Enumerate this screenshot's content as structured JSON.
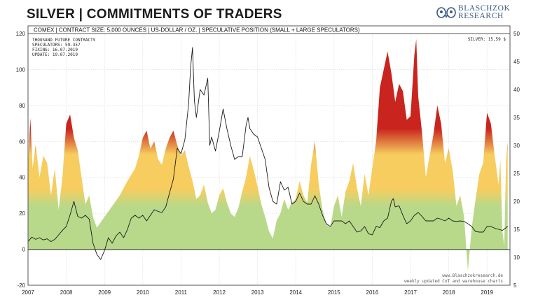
{
  "header": {
    "title": "SILVER | COMMITMENTS OF TRADERS",
    "logo_line1": "BLASCHZOK",
    "logo_line2": "RESEARCH"
  },
  "chart_data": {
    "type": "area",
    "subtitle": "COMEX | CONTRACT SIZE: 5,000 OUNCES | US-DOLLAR / OZ. | SPECULATIVE POSITION (SMALL + LARGE SPECULATORS)",
    "info_lines": [
      "THOUSAND FUTURE CONTRACTS",
      "SPECULATORS: 59.357",
      "FIXING: 16.07.2019",
      "UPDATE: 19.07.2019"
    ],
    "price_label": "SILVER: 15,59 $",
    "watermark_lines": [
      "www.Blaschzokresearch.de",
      "weekly updated CoT and warehouse charts"
    ],
    "x_ticks": [
      "2007",
      "2008",
      "2009",
      "2010",
      "2011",
      "2012",
      "2013",
      "2014",
      "2015",
      "2016",
      "2017",
      "2018",
      "2019"
    ],
    "left_axis": {
      "ylim": [
        -20,
        120
      ],
      "ticks": [
        "-20",
        "0",
        "20",
        "40",
        "60",
        "80",
        "100",
        "120"
      ]
    },
    "right_axis": {
      "ylim": [
        5,
        50
      ],
      "ticks": [
        "5",
        "10",
        "15",
        "20",
        "25",
        "30",
        "35",
        "40",
        "45",
        "50"
      ]
    },
    "colors": {
      "low": "#b8d98a",
      "mid": "#f6cd5e",
      "high": "#c9241e",
      "price_line": "#1a1a1a"
    },
    "grid": true,
    "series": [
      {
        "name": "Speculative position",
        "axis": "left",
        "points": [
          [
            2007.0,
            47
          ],
          [
            2007.06,
            73
          ],
          [
            2007.12,
            45
          ],
          [
            2007.2,
            58
          ],
          [
            2007.3,
            40
          ],
          [
            2007.4,
            52
          ],
          [
            2007.5,
            48
          ],
          [
            2007.6,
            30
          ],
          [
            2007.7,
            45
          ],
          [
            2007.8,
            22
          ],
          [
            2007.9,
            40
          ],
          [
            2008.0,
            70
          ],
          [
            2008.1,
            75
          ],
          [
            2008.2,
            62
          ],
          [
            2008.3,
            55
          ],
          [
            2008.4,
            40
          ],
          [
            2008.5,
            25
          ],
          [
            2008.6,
            30
          ],
          [
            2008.7,
            18
          ],
          [
            2008.8,
            12
          ],
          [
            2008.9,
            15
          ],
          [
            2009.0,
            18
          ],
          [
            2009.2,
            24
          ],
          [
            2009.4,
            30
          ],
          [
            2009.6,
            38
          ],
          [
            2009.8,
            45
          ],
          [
            2009.9,
            52
          ],
          [
            2010.0,
            62
          ],
          [
            2010.1,
            66
          ],
          [
            2010.2,
            56
          ],
          [
            2010.3,
            60
          ],
          [
            2010.4,
            50
          ],
          [
            2010.5,
            47
          ],
          [
            2010.6,
            56
          ],
          [
            2010.7,
            62
          ],
          [
            2010.8,
            66
          ],
          [
            2010.9,
            58
          ],
          [
            2011.0,
            52
          ],
          [
            2011.1,
            55
          ],
          [
            2011.2,
            46
          ],
          [
            2011.3,
            38
          ],
          [
            2011.4,
            28
          ],
          [
            2011.5,
            30
          ],
          [
            2011.6,
            36
          ],
          [
            2011.7,
            26
          ],
          [
            2011.8,
            20
          ],
          [
            2011.9,
            22
          ],
          [
            2012.0,
            30
          ],
          [
            2012.1,
            34
          ],
          [
            2012.2,
            26
          ],
          [
            2012.3,
            20
          ],
          [
            2012.4,
            18
          ],
          [
            2012.5,
            23
          ],
          [
            2012.6,
            32
          ],
          [
            2012.7,
            40
          ],
          [
            2012.8,
            52
          ],
          [
            2012.9,
            44
          ],
          [
            2013.0,
            35
          ],
          [
            2013.1,
            25
          ],
          [
            2013.2,
            18
          ],
          [
            2013.3,
            10
          ],
          [
            2013.4,
            6
          ],
          [
            2013.5,
            16
          ],
          [
            2013.6,
            20
          ],
          [
            2013.7,
            28
          ],
          [
            2013.8,
            22
          ],
          [
            2013.9,
            26
          ],
          [
            2014.0,
            28
          ],
          [
            2014.1,
            38
          ],
          [
            2014.2,
            30
          ],
          [
            2014.3,
            26
          ],
          [
            2014.4,
            47
          ],
          [
            2014.5,
            60
          ],
          [
            2014.6,
            36
          ],
          [
            2014.7,
            22
          ],
          [
            2014.8,
            14
          ],
          [
            2014.9,
            12
          ],
          [
            2015.0,
            24
          ],
          [
            2015.1,
            30
          ],
          [
            2015.2,
            18
          ],
          [
            2015.3,
            32
          ],
          [
            2015.4,
            38
          ],
          [
            2015.5,
            48
          ],
          [
            2015.6,
            34
          ],
          [
            2015.7,
            24
          ],
          [
            2015.8,
            42
          ],
          [
            2015.9,
            30
          ],
          [
            2016.0,
            45
          ],
          [
            2016.1,
            60
          ],
          [
            2016.2,
            90
          ],
          [
            2016.3,
            100
          ],
          [
            2016.4,
            110
          ],
          [
            2016.5,
            98
          ],
          [
            2016.6,
            82
          ],
          [
            2016.7,
            92
          ],
          [
            2016.8,
            88
          ],
          [
            2016.9,
            72
          ],
          [
            2017.0,
            74
          ],
          [
            2017.1,
            108
          ],
          [
            2017.15,
            117
          ],
          [
            2017.2,
            85
          ],
          [
            2017.3,
            65
          ],
          [
            2017.4,
            40
          ],
          [
            2017.5,
            52
          ],
          [
            2017.6,
            64
          ],
          [
            2017.7,
            80
          ],
          [
            2017.8,
            70
          ],
          [
            2017.9,
            48
          ],
          [
            2018.0,
            56
          ],
          [
            2018.1,
            44
          ],
          [
            2018.2,
            24
          ],
          [
            2018.3,
            30
          ],
          [
            2018.4,
            18
          ],
          [
            2018.5,
            -12
          ],
          [
            2018.6,
            12
          ],
          [
            2018.7,
            28
          ],
          [
            2018.8,
            42
          ],
          [
            2018.9,
            48
          ],
          [
            2019.0,
            76
          ],
          [
            2019.1,
            70
          ],
          [
            2019.2,
            52
          ],
          [
            2019.3,
            36
          ],
          [
            2019.35,
            50
          ],
          [
            2019.4,
            10
          ],
          [
            2019.45,
            2
          ],
          [
            2019.5,
            50
          ],
          [
            2019.54,
            59.357
          ]
        ]
      },
      {
        "name": "SILVER",
        "axis": "right",
        "points": [
          [
            2007.0,
            12.8
          ],
          [
            2007.1,
            13.6
          ],
          [
            2007.2,
            13.2
          ],
          [
            2007.3,
            13.5
          ],
          [
            2007.4,
            13.1
          ],
          [
            2007.5,
            13.3
          ],
          [
            2007.6,
            12.8
          ],
          [
            2007.7,
            13.2
          ],
          [
            2007.8,
            14.0
          ],
          [
            2007.9,
            14.8
          ],
          [
            2008.0,
            15.5
          ],
          [
            2008.1,
            17.6
          ],
          [
            2008.2,
            20.0
          ],
          [
            2008.3,
            17.3
          ],
          [
            2008.4,
            17.0
          ],
          [
            2008.5,
            17.5
          ],
          [
            2008.6,
            16.8
          ],
          [
            2008.7,
            12.5
          ],
          [
            2008.8,
            10.5
          ],
          [
            2008.9,
            9.6
          ],
          [
            2009.0,
            11.2
          ],
          [
            2009.1,
            13.5
          ],
          [
            2009.2,
            12.5
          ],
          [
            2009.3,
            13.8
          ],
          [
            2009.4,
            14.5
          ],
          [
            2009.5,
            13.5
          ],
          [
            2009.6,
            15.0
          ],
          [
            2009.7,
            17.0
          ],
          [
            2009.8,
            17.5
          ],
          [
            2009.9,
            17.0
          ],
          [
            2010.0,
            17.5
          ],
          [
            2010.1,
            16.5
          ],
          [
            2010.2,
            17.5
          ],
          [
            2010.3,
            18.5
          ],
          [
            2010.4,
            18.2
          ],
          [
            2010.5,
            18.0
          ],
          [
            2010.6,
            19.0
          ],
          [
            2010.7,
            21.5
          ],
          [
            2010.8,
            24.0
          ],
          [
            2010.9,
            29.5
          ],
          [
            2011.0,
            28.5
          ],
          [
            2011.1,
            31.0
          ],
          [
            2011.2,
            37.5
          ],
          [
            2011.25,
            44.0
          ],
          [
            2011.3,
            47.5
          ],
          [
            2011.35,
            38.0
          ],
          [
            2011.4,
            35.0
          ],
          [
            2011.5,
            40.0
          ],
          [
            2011.6,
            39.0
          ],
          [
            2011.7,
            42.0
          ],
          [
            2011.75,
            30.0
          ],
          [
            2011.8,
            31.5
          ],
          [
            2011.9,
            29.0
          ],
          [
            2012.0,
            32.5
          ],
          [
            2012.1,
            36.5
          ],
          [
            2012.2,
            33.0
          ],
          [
            2012.3,
            30.0
          ],
          [
            2012.4,
            27.5
          ],
          [
            2012.5,
            28.0
          ],
          [
            2012.6,
            28.0
          ],
          [
            2012.7,
            33.5
          ],
          [
            2012.75,
            35.0
          ],
          [
            2012.8,
            33.0
          ],
          [
            2012.9,
            32.0
          ],
          [
            2013.0,
            31.5
          ],
          [
            2013.1,
            29.5
          ],
          [
            2013.2,
            27.5
          ],
          [
            2013.3,
            22.5
          ],
          [
            2013.4,
            20.0
          ],
          [
            2013.5,
            19.5
          ],
          [
            2013.6,
            23.5
          ],
          [
            2013.7,
            22.0
          ],
          [
            2013.8,
            22.5
          ],
          [
            2013.9,
            19.5
          ],
          [
            2014.0,
            20.0
          ],
          [
            2014.1,
            21.5
          ],
          [
            2014.2,
            20.0
          ],
          [
            2014.3,
            19.5
          ],
          [
            2014.4,
            19.5
          ],
          [
            2014.5,
            21.0
          ],
          [
            2014.6,
            19.5
          ],
          [
            2014.7,
            17.5
          ],
          [
            2014.8,
            16.0
          ],
          [
            2014.9,
            15.5
          ],
          [
            2015.0,
            16.5
          ],
          [
            2015.1,
            16.5
          ],
          [
            2015.2,
            16.5
          ],
          [
            2015.3,
            16.0
          ],
          [
            2015.4,
            16.5
          ],
          [
            2015.5,
            15.5
          ],
          [
            2015.6,
            14.5
          ],
          [
            2015.7,
            14.7
          ],
          [
            2015.8,
            15.5
          ],
          [
            2015.9,
            14.2
          ],
          [
            2016.0,
            14.0
          ],
          [
            2016.1,
            15.5
          ],
          [
            2016.2,
            15.3
          ],
          [
            2016.3,
            16.5
          ],
          [
            2016.4,
            17.0
          ],
          [
            2016.5,
            20.0
          ],
          [
            2016.55,
            20.5
          ],
          [
            2016.6,
            19.0
          ],
          [
            2016.7,
            19.2
          ],
          [
            2016.8,
            17.5
          ],
          [
            2016.9,
            16.0
          ],
          [
            2017.0,
            16.5
          ],
          [
            2017.1,
            17.5
          ],
          [
            2017.2,
            18.0
          ],
          [
            2017.3,
            17.3
          ],
          [
            2017.4,
            16.5
          ],
          [
            2017.5,
            16.5
          ],
          [
            2017.6,
            16.5
          ],
          [
            2017.7,
            17.0
          ],
          [
            2017.8,
            16.8
          ],
          [
            2017.9,
            16.5
          ],
          [
            2018.0,
            17.0
          ],
          [
            2018.1,
            16.5
          ],
          [
            2018.2,
            16.4
          ],
          [
            2018.3,
            16.5
          ],
          [
            2018.4,
            16.4
          ],
          [
            2018.5,
            16.0
          ],
          [
            2018.6,
            15.5
          ],
          [
            2018.7,
            14.6
          ],
          [
            2018.8,
            14.5
          ],
          [
            2018.9,
            14.5
          ],
          [
            2019.0,
            15.5
          ],
          [
            2019.1,
            15.5
          ],
          [
            2019.2,
            15.2
          ],
          [
            2019.3,
            15.0
          ],
          [
            2019.4,
            14.8
          ],
          [
            2019.5,
            15.3
          ],
          [
            2019.54,
            15.59
          ]
        ]
      }
    ]
  }
}
